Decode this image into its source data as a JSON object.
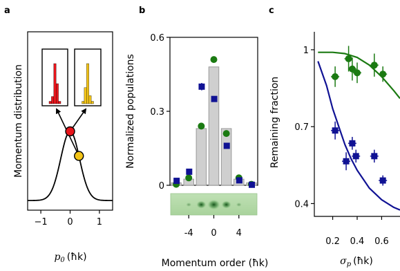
{
  "chart_data": [
    {
      "panel": "a",
      "type": "line",
      "xlabel_math": "p",
      "xlabel_sub": "0",
      "xlabel_unit": "(ħk)",
      "ylabel": "Momentum distribution",
      "xlim": [
        -1.45,
        1.45
      ],
      "x_ticks": [
        "−1",
        "0",
        "1"
      ],
      "x_tick_values": [
        -1,
        0,
        1
      ],
      "curve": {
        "type": "gaussian",
        "mean": 0,
        "sigma": 0.32
      },
      "points": [
        {
          "x": 0.0,
          "color": "#e8151b"
        },
        {
          "x": 0.3,
          "color": "#f3c417"
        }
      ],
      "insets": [
        {
          "color": "#e8151b",
          "bars": [
            0.06,
            0.18,
            1.0,
            0.5,
            0.06
          ]
        },
        {
          "color": "#f3c417",
          "bars": [
            0.06,
            0.4,
            1.0,
            0.2,
            0.06
          ]
        }
      ]
    },
    {
      "panel": "b",
      "type": "bar",
      "xlabel": "Momentum order (ħk)",
      "ylabel": "Normalized populations",
      "xlim": [
        -7,
        7
      ],
      "ylim": [
        0,
        0.6
      ],
      "y_ticks": [
        "0",
        "0.3",
        "0.6"
      ],
      "y_tick_values": [
        0,
        0.3,
        0.6
      ],
      "x_ticks": [
        "-4",
        "0",
        "4"
      ],
      "x_tick_values": [
        -4,
        0,
        4
      ],
      "bars": {
        "x": [
          -6,
          -4,
          -2,
          0,
          2,
          4,
          6
        ],
        "values": [
          0.01,
          0.025,
          0.23,
          0.48,
          0.23,
          0.025,
          0.01
        ],
        "color": "#cfcfcf"
      },
      "series": [
        {
          "marker": "circle",
          "color": "#1b7a12",
          "x": [
            -6,
            -4,
            -2,
            0,
            2,
            4,
            6
          ],
          "values": [
            0.004,
            0.03,
            0.24,
            0.51,
            0.21,
            0.03,
            0.004
          ]
        },
        {
          "marker": "square",
          "color": "#101294",
          "x": [
            -6,
            -4,
            -2,
            0,
            2,
            4,
            6
          ],
          "values": [
            0.018,
            0.055,
            0.4,
            0.35,
            0.16,
            0.02,
            0.002
          ],
          "err": [
            0,
            0,
            0.015,
            0,
            0,
            0,
            0
          ]
        }
      ]
    },
    {
      "panel": "c",
      "type": "scatter",
      "xlabel_math": "σ",
      "xlabel_sub": "p",
      "xlabel_unit": "(ħk)",
      "ylabel": "Remaining fraction",
      "xlim": [
        0.05,
        0.75
      ],
      "ylim": [
        0.35,
        1.07
      ],
      "y_ticks": [
        "0.4",
        "0.7",
        "1"
      ],
      "y_tick_values": [
        0.4,
        0.7,
        1.0
      ],
      "x_ticks": [
        "0.2",
        "0.4",
        "0.6"
      ],
      "x_tick_values": [
        0.2,
        0.4,
        0.6
      ],
      "series": [
        {
          "marker": "circle",
          "color": "#1b7a12",
          "x": [
            0.22,
            0.33,
            0.36,
            0.4,
            0.54,
            0.61
          ],
          "values": [
            0.895,
            0.965,
            0.925,
            0.91,
            0.94,
            0.905
          ],
          "err": [
            0.04,
            0.05,
            0.045,
            0.04,
            0.045,
            0.03
          ],
          "fit": [
            [
              0.08,
              0.99
            ],
            [
              0.2,
              0.99
            ],
            [
              0.3,
              0.985
            ],
            [
              0.4,
              0.97
            ],
            [
              0.5,
              0.94
            ],
            [
              0.6,
              0.895
            ],
            [
              0.7,
              0.84
            ],
            [
              0.75,
              0.81
            ]
          ]
        },
        {
          "marker": "square",
          "color": "#101294",
          "x": [
            0.22,
            0.31,
            0.36,
            0.39,
            0.54,
            0.61
          ],
          "values": [
            0.685,
            0.565,
            0.635,
            0.585,
            0.585,
            0.49
          ],
          "err": [
            0.035,
            0.035,
            0.025,
            0.025,
            0.025,
            0.02
          ],
          "fit": [
            [
              0.08,
              0.955
            ],
            [
              0.15,
              0.86
            ],
            [
              0.2,
              0.77
            ],
            [
              0.25,
              0.7
            ],
            [
              0.3,
              0.63
            ],
            [
              0.35,
              0.575
            ],
            [
              0.4,
              0.53
            ],
            [
              0.5,
              0.46
            ],
            [
              0.6,
              0.415
            ],
            [
              0.7,
              0.385
            ],
            [
              0.75,
              0.375
            ]
          ]
        }
      ]
    }
  ]
}
